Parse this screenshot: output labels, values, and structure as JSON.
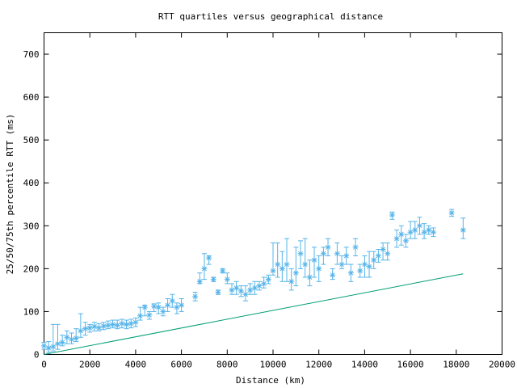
{
  "chart_data": {
    "type": "scatter",
    "title": "RTT quartiles versus geographical distance",
    "xlabel": "Distance (km)",
    "ylabel": "25/50/75th percentile RTT (ms)",
    "xlim": [
      0,
      20000
    ],
    "ylim": [
      0,
      750
    ],
    "xticks": [
      0,
      2000,
      4000,
      6000,
      8000,
      10000,
      12000,
      14000,
      16000,
      18000,
      20000
    ],
    "yticks": [
      0,
      100,
      200,
      300,
      400,
      500,
      600,
      700
    ],
    "grid": false,
    "legend": "none",
    "colors": {
      "points": "#56b4e9",
      "line": "#009e73"
    },
    "series": [
      {
        "type": "errorbar",
        "columns": [
          "x",
          "median",
          "p25",
          "p75"
        ],
        "points": [
          [
            0,
            20,
            12,
            28
          ],
          [
            200,
            15,
            5,
            30
          ],
          [
            400,
            18,
            8,
            70
          ],
          [
            600,
            25,
            12,
            70
          ],
          [
            800,
            28,
            20,
            45
          ],
          [
            1000,
            40,
            25,
            55
          ],
          [
            1200,
            35,
            25,
            50
          ],
          [
            1400,
            38,
            30,
            60
          ],
          [
            1600,
            55,
            40,
            95
          ],
          [
            1800,
            60,
            45,
            75
          ],
          [
            2000,
            62,
            52,
            70
          ],
          [
            2200,
            65,
            55,
            75
          ],
          [
            2400,
            62,
            55,
            72
          ],
          [
            2600,
            66,
            58,
            75
          ],
          [
            2800,
            68,
            60,
            78
          ],
          [
            3000,
            70,
            62,
            80
          ],
          [
            3200,
            68,
            60,
            80
          ],
          [
            3400,
            72,
            62,
            82
          ],
          [
            3600,
            70,
            60,
            80
          ],
          [
            3800,
            72,
            62,
            82
          ],
          [
            4000,
            75,
            65,
            85
          ],
          [
            4200,
            90,
            80,
            110
          ],
          [
            4400,
            110,
            90,
            115
          ],
          [
            4600,
            92,
            82,
            100
          ],
          [
            4800,
            112,
            100,
            118
          ],
          [
            5000,
            110,
            95,
            120
          ],
          [
            5200,
            100,
            90,
            110
          ],
          [
            5400,
            115,
            100,
            130
          ],
          [
            5600,
            125,
            110,
            140
          ],
          [
            5800,
            110,
            95,
            120
          ],
          [
            6000,
            115,
            100,
            130
          ],
          [
            6600,
            135,
            125,
            145
          ],
          [
            6800,
            170,
            165,
            190
          ],
          [
            7000,
            200,
            175,
            235
          ],
          [
            7200,
            225,
            210,
            230
          ],
          [
            7400,
            175,
            170,
            180
          ],
          [
            7600,
            145,
            140,
            150
          ],
          [
            7800,
            195,
            190,
            200
          ],
          [
            8000,
            175,
            165,
            190
          ],
          [
            8200,
            150,
            140,
            165
          ],
          [
            8400,
            155,
            140,
            170
          ],
          [
            8600,
            148,
            135,
            160
          ],
          [
            8800,
            140,
            125,
            160
          ],
          [
            9000,
            150,
            140,
            165
          ],
          [
            9200,
            155,
            140,
            170
          ],
          [
            9400,
            160,
            150,
            170
          ],
          [
            9600,
            165,
            155,
            180
          ],
          [
            9800,
            175,
            165,
            185
          ],
          [
            10000,
            195,
            185,
            260
          ],
          [
            10200,
            210,
            180,
            260
          ],
          [
            10400,
            200,
            170,
            240
          ],
          [
            10600,
            210,
            170,
            270
          ],
          [
            10800,
            170,
            150,
            200
          ],
          [
            11000,
            190,
            160,
            250
          ],
          [
            11200,
            235,
            200,
            265
          ],
          [
            11400,
            210,
            180,
            270
          ],
          [
            11600,
            180,
            160,
            220
          ],
          [
            11800,
            220,
            180,
            250
          ],
          [
            12000,
            200,
            170,
            230
          ],
          [
            12200,
            235,
            210,
            250
          ],
          [
            12400,
            250,
            230,
            270
          ],
          [
            12600,
            185,
            175,
            200
          ],
          [
            12800,
            235,
            210,
            260
          ],
          [
            13000,
            210,
            200,
            230
          ],
          [
            13200,
            230,
            210,
            250
          ],
          [
            13400,
            190,
            170,
            210
          ],
          [
            13600,
            250,
            230,
            270
          ],
          [
            13800,
            195,
            180,
            210
          ],
          [
            14000,
            210,
            180,
            230
          ],
          [
            14200,
            205,
            180,
            240
          ],
          [
            14400,
            220,
            200,
            240
          ],
          [
            14600,
            230,
            215,
            245
          ],
          [
            14800,
            245,
            220,
            260
          ],
          [
            15000,
            235,
            220,
            260
          ],
          [
            15200,
            325,
            315,
            332
          ],
          [
            15400,
            270,
            250,
            290
          ],
          [
            15600,
            280,
            255,
            300
          ],
          [
            15800,
            265,
            250,
            280
          ],
          [
            16000,
            285,
            270,
            310
          ],
          [
            16200,
            290,
            270,
            310
          ],
          [
            16400,
            300,
            280,
            320
          ],
          [
            16600,
            285,
            270,
            305
          ],
          [
            16800,
            290,
            280,
            300
          ],
          [
            17000,
            285,
            275,
            295
          ],
          [
            17800,
            330,
            322,
            338
          ],
          [
            18300,
            290,
            270,
            318
          ]
        ]
      },
      {
        "type": "line",
        "x": [
          0,
          18300
        ],
        "y": [
          0,
          188
        ]
      }
    ]
  }
}
